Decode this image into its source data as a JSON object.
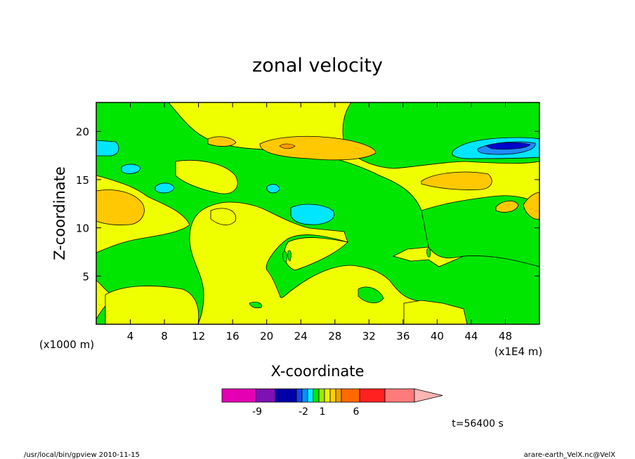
{
  "chart_data": {
    "type": "heatmap",
    "title": "zonal velocity",
    "xlabel": "X-coordinate",
    "ylabel": "Z-coordinate",
    "x_unit_note": "(x1E4 m)",
    "z_unit_note": "(x1000 m)",
    "xlim": [
      0,
      52
    ],
    "ylim": [
      0,
      23
    ],
    "x_ticks": [
      4,
      8,
      12,
      16,
      20,
      24,
      28,
      32,
      36,
      40,
      44,
      48
    ],
    "y_ticks": [
      5,
      10,
      15,
      20
    ],
    "colorbar": {
      "levels_shown": [
        "-9",
        "-2",
        "1",
        "6"
      ],
      "segments": [
        {
          "color": "#e600b4"
        },
        {
          "color": "#7f10b4"
        },
        {
          "color": "#0000a6"
        },
        {
          "color": "#1f3fe6"
        },
        {
          "color": "#0092ff"
        },
        {
          "color": "#00f2ff"
        },
        {
          "color": "#00e600"
        },
        {
          "color": "#a0e600"
        },
        {
          "color": "#f0f000"
        },
        {
          "color": "#ffd000"
        },
        {
          "color": "#f0a000"
        },
        {
          "color": "#ff6a00"
        },
        {
          "color": "#ff2020"
        },
        {
          "color": "#ff7a7a"
        },
        {
          "color": "#ffb4b4"
        }
      ]
    },
    "regions": {
      "green": "near-zero / weak negative zonal velocity",
      "yellow": "weak positive",
      "orange": "moderate positive",
      "cyan_blue": "negative"
    },
    "time_label": "t=56400 s"
  },
  "footer": {
    "left": "/usr/local/bin/gpview   2010-11-15",
    "right": "arare-earth_VelX.nc@VelX"
  },
  "colors": {
    "green": "#00e600",
    "yellow": "#f0ff00",
    "orange": "#ffc800",
    "cyan": "#00e6ff",
    "light_blue": "#1e8cff",
    "dark_blue": "#0000c8"
  }
}
